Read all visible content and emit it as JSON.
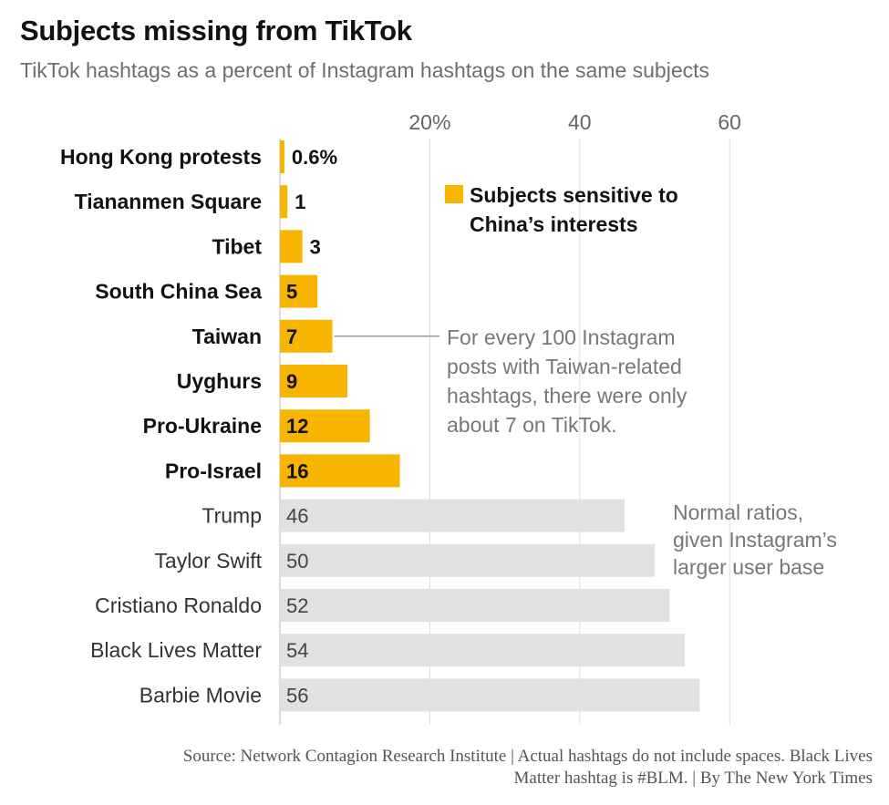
{
  "title": "Subjects missing from TikTok",
  "subtitle": "TikTok hashtags as a percent of Instagram hashtags on the same subjects",
  "chart_data": {
    "type": "bar",
    "orientation": "horizontal",
    "xlim": [
      0,
      60
    ],
    "ticks": [
      {
        "value": 20,
        "label": "20%"
      },
      {
        "value": 40,
        "label": "40"
      },
      {
        "value": 60,
        "label": "60"
      }
    ],
    "grid": true,
    "legend": {
      "label": "Subjects sensitive to China’s interests",
      "color": "#f7b500",
      "position": "top-right"
    },
    "categories": [
      {
        "label": "Hong Kong protests",
        "value": 0.6,
        "value_label": "0.6%",
        "sensitive": true
      },
      {
        "label": "Tiananmen Square",
        "value": 1,
        "value_label": "1",
        "sensitive": true
      },
      {
        "label": "Tibet",
        "value": 3,
        "value_label": "3",
        "sensitive": true
      },
      {
        "label": "South China Sea",
        "value": 5,
        "value_label": "5",
        "sensitive": true
      },
      {
        "label": "Taiwan",
        "value": 7,
        "value_label": "7",
        "sensitive": true
      },
      {
        "label": "Uyghurs",
        "value": 9,
        "value_label": "9",
        "sensitive": true
      },
      {
        "label": "Pro-Ukraine",
        "value": 12,
        "value_label": "12",
        "sensitive": true
      },
      {
        "label": "Pro-Israel",
        "value": 16,
        "value_label": "16",
        "sensitive": true
      },
      {
        "label": "Trump",
        "value": 46,
        "value_label": "46",
        "sensitive": false
      },
      {
        "label": "Taylor Swift",
        "value": 50,
        "value_label": "50",
        "sensitive": false
      },
      {
        "label": "Cristiano Ronaldo",
        "value": 52,
        "value_label": "52",
        "sensitive": false
      },
      {
        "label": "Black Lives Matter",
        "value": 54,
        "value_label": "54",
        "sensitive": false
      },
      {
        "label": "Barbie Movie",
        "value": 56,
        "value_label": "56",
        "sensitive": false
      }
    ],
    "annotations": [
      {
        "text": [
          "For every 100 Instagram",
          "posts with Taiwan-related",
          "hashtags, there were only",
          "about 7 on TikTok."
        ],
        "target": "Taiwan"
      },
      {
        "text": [
          "Normal ratios,",
          "given Instagram’s",
          "larger user base"
        ],
        "target": "Trump"
      }
    ]
  },
  "colors": {
    "sensitive": "#f7b500",
    "normal": "#e1e1e1",
    "grid": "#dddddd",
    "annotation_text": "#777777"
  },
  "footer": {
    "line1": "Source: Network Contagion Research Institute | Actual hashtags do not include spaces. Black Lives",
    "line2": "Matter hashtag is #BLM. | By The New York Times"
  }
}
